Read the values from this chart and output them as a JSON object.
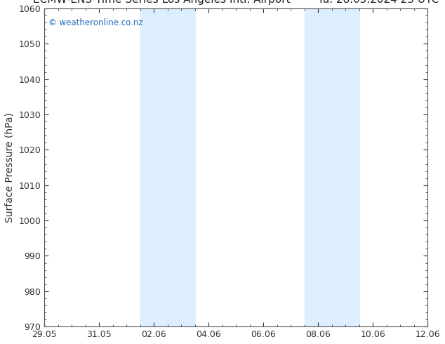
{
  "ylabel": "Surface Pressure (hPa)",
  "watermark": "© weatheronline.co.nz",
  "background_color": "#ffffff",
  "plot_bg_color": "#ffffff",
  "ylim": [
    970,
    1060
  ],
  "yticks": [
    970,
    980,
    990,
    1000,
    1010,
    1020,
    1030,
    1040,
    1050,
    1060
  ],
  "xlim_start": 0,
  "xlim_end": 14,
  "xtick_positions": [
    0,
    2,
    4,
    6,
    8,
    10,
    12,
    14
  ],
  "xtick_labels": [
    "29.05",
    "31.05",
    "02.06",
    "04.06",
    "06.06",
    "08.06",
    "10.06",
    "12.06"
  ],
  "shaded_bands": [
    {
      "x_start": 3.5,
      "x_end": 5.5,
      "color": "#ddeeff",
      "alpha": 1.0
    },
    {
      "x_start": 9.5,
      "x_end": 11.5,
      "color": "#ddeeff",
      "alpha": 1.0
    }
  ],
  "title_fontsize": 11,
  "axis_label_fontsize": 10,
  "tick_fontsize": 9,
  "watermark_color": "#1a6abf",
  "border_color": "#555555",
  "tick_color": "#333333"
}
